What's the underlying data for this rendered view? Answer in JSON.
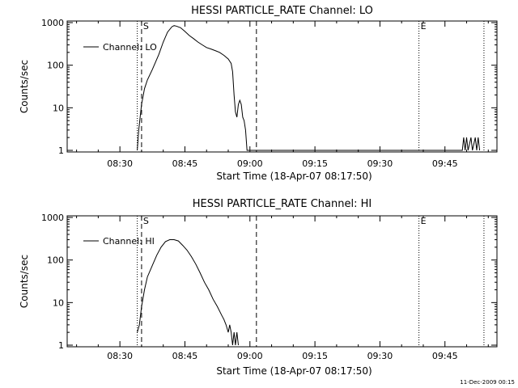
{
  "footer_date": "11-Dec-2009 00:15",
  "chart_data": [
    {
      "type": "line",
      "title": "HESSI PARTICLE_RATE Channel: LO",
      "xlabel": "Start Time (18-Apr-07 08:17:50)",
      "ylabel": "Counts/sec",
      "x_ticks": [
        "08:30",
        "08:45",
        "09:00",
        "09:15",
        "09:30",
        "09:45"
      ],
      "y_ticks": [
        "1",
        "10",
        "100",
        "1000"
      ],
      "y_scale": "log",
      "xlim": [
        "08:17:50",
        "09:57:00"
      ],
      "ylim": [
        1,
        1000
      ],
      "legend": {
        "label": "Channel: LO",
        "placement": "top-left"
      },
      "markers": [
        {
          "time": "08:34:00",
          "style": "dotted",
          "label": ""
        },
        {
          "time": "08:35:00",
          "style": "dashed",
          "label": "S"
        },
        {
          "time": "09:01:30",
          "style": "dashed",
          "label": ""
        },
        {
          "time": "09:39:00",
          "style": "dotted",
          "label": "E"
        },
        {
          "time": "09:54:00",
          "style": "dotted",
          "label": ""
        }
      ],
      "series": [
        {
          "name": "Channel: LO",
          "points": [
            [
              "08:34:00",
              1
            ],
            [
              "08:34:20",
              3
            ],
            [
              "08:35:00",
              12
            ],
            [
              "08:35:40",
              28
            ],
            [
              "08:36:20",
              45
            ],
            [
              "08:37:30",
              80
            ],
            [
              "08:39:00",
              180
            ],
            [
              "08:40:00",
              350
            ],
            [
              "08:41:00",
              600
            ],
            [
              "08:42:00",
              800
            ],
            [
              "08:42:30",
              850
            ],
            [
              "08:43:00",
              830
            ],
            [
              "08:44:00",
              760
            ],
            [
              "08:45:00",
              620
            ],
            [
              "08:46:00",
              500
            ],
            [
              "08:47:00",
              420
            ],
            [
              "08:48:00",
              350
            ],
            [
              "08:49:00",
              300
            ],
            [
              "08:50:00",
              260
            ],
            [
              "08:51:00",
              240
            ],
            [
              "08:52:00",
              220
            ],
            [
              "08:53:00",
              200
            ],
            [
              "08:54:00",
              170
            ],
            [
              "08:55:00",
              140
            ],
            [
              "08:55:40",
              110
            ],
            [
              "08:56:00",
              70
            ],
            [
              "08:56:20",
              20
            ],
            [
              "08:56:40",
              8
            ],
            [
              "08:57:00",
              6
            ],
            [
              "08:57:20",
              12
            ],
            [
              "08:57:40",
              15
            ],
            [
              "08:58:00",
              12
            ],
            [
              "08:58:20",
              6
            ],
            [
              "08:58:40",
              5
            ],
            [
              "08:59:00",
              3
            ],
            [
              "08:59:20",
              1
            ],
            [
              "09:49:00",
              1
            ],
            [
              "09:49:20",
              2
            ],
            [
              "09:49:40",
              1
            ],
            [
              "09:50:00",
              2
            ],
            [
              "09:50:20",
              1
            ],
            [
              "09:51:00",
              2
            ],
            [
              "09:51:20",
              1
            ],
            [
              "09:52:00",
              2
            ],
            [
              "09:52:20",
              1
            ],
            [
              "09:52:40",
              2
            ],
            [
              "09:53:00",
              1
            ]
          ]
        }
      ]
    },
    {
      "type": "line",
      "title": "HESSI PARTICLE_RATE Channel: HI",
      "xlabel": "Start Time (18-Apr-07 08:17:50)",
      "ylabel": "Counts/sec",
      "x_ticks": [
        "08:30",
        "08:45",
        "09:00",
        "09:15",
        "09:30",
        "09:45"
      ],
      "y_ticks": [
        "1",
        "10",
        "100",
        "1000"
      ],
      "y_scale": "log",
      "xlim": [
        "08:17:50",
        "09:57:00"
      ],
      "ylim": [
        1,
        1000
      ],
      "legend": {
        "label": "Channel: HI",
        "placement": "top-left"
      },
      "markers": [
        {
          "time": "08:34:00",
          "style": "dotted",
          "label": ""
        },
        {
          "time": "08:35:00",
          "style": "dashed",
          "label": "S"
        },
        {
          "time": "09:01:30",
          "style": "dashed",
          "label": ""
        },
        {
          "time": "09:39:00",
          "style": "dotted",
          "label": "E"
        },
        {
          "time": "09:54:00",
          "style": "dotted",
          "label": ""
        }
      ],
      "series": [
        {
          "name": "Channel: HI",
          "points": [
            [
              "08:34:00",
              2
            ],
            [
              "08:34:30",
              3
            ],
            [
              "08:35:00",
              8
            ],
            [
              "08:35:40",
              20
            ],
            [
              "08:36:20",
              40
            ],
            [
              "08:37:30",
              75
            ],
            [
              "08:38:30",
              130
            ],
            [
              "08:39:30",
              200
            ],
            [
              "08:40:30",
              270
            ],
            [
              "08:41:30",
              300
            ],
            [
              "08:42:30",
              300
            ],
            [
              "08:43:30",
              280
            ],
            [
              "08:44:30",
              220
            ],
            [
              "08:45:30",
              170
            ],
            [
              "08:46:30",
              120
            ],
            [
              "08:47:30",
              80
            ],
            [
              "08:48:30",
              50
            ],
            [
              "08:49:30",
              30
            ],
            [
              "08:50:30",
              20
            ],
            [
              "08:51:30",
              12
            ],
            [
              "08:52:30",
              8
            ],
            [
              "08:53:30",
              5
            ],
            [
              "08:54:00",
              4
            ],
            [
              "08:54:30",
              3
            ],
            [
              "08:55:00",
              2
            ],
            [
              "08:55:20",
              3
            ],
            [
              "08:55:40",
              2
            ],
            [
              "08:56:00",
              1
            ],
            [
              "08:56:20",
              2
            ],
            [
              "08:56:40",
              1
            ],
            [
              "08:57:00",
              2
            ],
            [
              "08:57:20",
              1
            ]
          ]
        }
      ]
    }
  ]
}
